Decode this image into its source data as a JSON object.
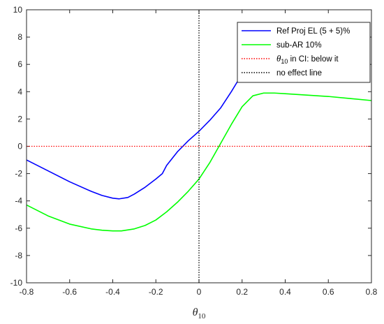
{
  "chart_data": {
    "type": "line",
    "title": "",
    "xlabel": "θ10",
    "ylabel": "",
    "xlim": [
      -0.8,
      0.8
    ],
    "ylim": [
      -10,
      10
    ],
    "xticks": [
      "-0.8",
      "-0.6",
      "-0.4",
      "-0.2",
      "0",
      "0.2",
      "0.4",
      "0.6",
      "0.8"
    ],
    "yticks": [
      "10",
      "8",
      "6",
      "4",
      "2",
      "0",
      "-2",
      "-4",
      "-6",
      "-8",
      "-10"
    ],
    "legend_position": "top-right",
    "series": [
      {
        "name": "Ref Proj EL (5 + 5)%",
        "color": "#0000ff",
        "style": "solid",
        "x": [
          -0.8,
          -0.7,
          -0.6,
          -0.5,
          -0.45,
          -0.4,
          -0.37,
          -0.33,
          -0.3,
          -0.25,
          -0.2,
          -0.17,
          -0.15,
          -0.1,
          -0.05,
          0.0,
          0.05,
          0.1,
          0.15,
          0.2,
          0.22
        ],
        "y": [
          -1.0,
          -1.8,
          -2.6,
          -3.3,
          -3.6,
          -3.8,
          -3.85,
          -3.75,
          -3.5,
          -3.0,
          -2.4,
          -2.0,
          -1.4,
          -0.4,
          0.4,
          1.1,
          1.9,
          2.8,
          4.0,
          5.3,
          5.6
        ]
      },
      {
        "name": "sub-AR 10%",
        "color": "#00ff00",
        "style": "solid",
        "x": [
          -0.8,
          -0.7,
          -0.6,
          -0.5,
          -0.45,
          -0.4,
          -0.36,
          -0.3,
          -0.25,
          -0.2,
          -0.15,
          -0.1,
          -0.05,
          0.0,
          0.05,
          0.1,
          0.15,
          0.2,
          0.25,
          0.3,
          0.35,
          0.4,
          0.5,
          0.6,
          0.7,
          0.8
        ],
        "y": [
          -4.3,
          -5.1,
          -5.7,
          -6.05,
          -6.15,
          -6.2,
          -6.2,
          -6.05,
          -5.8,
          -5.4,
          -4.8,
          -4.1,
          -3.3,
          -2.4,
          -1.2,
          0.2,
          1.6,
          2.9,
          3.7,
          3.9,
          3.9,
          3.85,
          3.75,
          3.65,
          3.5,
          3.35
        ]
      },
      {
        "name": "θ10 in CI: below it",
        "color": "#ff0000",
        "style": "dotted",
        "x": [
          -0.8,
          0.8
        ],
        "y": [
          0,
          0
        ]
      },
      {
        "name": "no effect line",
        "color": "#000000",
        "style": "dotted",
        "x": [
          0,
          0
        ],
        "y": [
          -10,
          10
        ]
      }
    ]
  }
}
